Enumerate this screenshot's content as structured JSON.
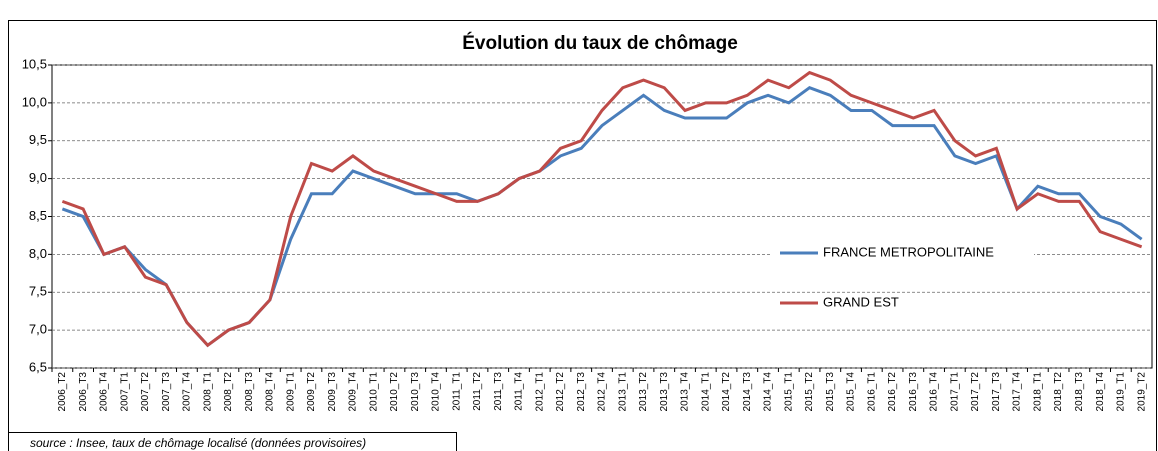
{
  "chart_data": {
    "type": "line",
    "title": "Évolution du taux de chômage",
    "categories": [
      "2006_T2",
      "2006_T3",
      "2006_T4",
      "2007_T1",
      "2007_T2",
      "2007_T3",
      "2007_T4",
      "2008_T1",
      "2008_T2",
      "2008_T3",
      "2008_T4",
      "2009_T1",
      "2009_T2",
      "2009_T3",
      "2009_T4",
      "2010_T1",
      "2010_T2",
      "2010_T3",
      "2010_T4",
      "2011_T1",
      "2011_T2",
      "2011_T3",
      "2011_T4",
      "2012_T1",
      "2012_T2",
      "2012_T3",
      "2012_T4",
      "2013_T1",
      "2013_T2",
      "2013_T3",
      "2013_T4",
      "2014_T1",
      "2014_T2",
      "2014_T3",
      "2014_T4",
      "2015_T1",
      "2015_T2",
      "2015_T3",
      "2015_T4",
      "2016_T1",
      "2016_T2",
      "2016_T3",
      "2016_T4",
      "2017_T1",
      "2017_T2",
      "2017_T3",
      "2017_T4",
      "2018_T1",
      "2018_T2",
      "2018_T3",
      "2018_T4",
      "2019_T1",
      "2019_T2"
    ],
    "series": [
      {
        "name": "FRANCE METROPOLITAINE",
        "color": "#4a7ebb",
        "values": [
          8.6,
          8.5,
          8.0,
          8.1,
          7.8,
          7.6,
          7.1,
          6.8,
          7.0,
          7.1,
          7.4,
          8.2,
          8.8,
          8.8,
          9.1,
          9.0,
          8.9,
          8.8,
          8.8,
          8.8,
          8.7,
          8.8,
          9.0,
          9.1,
          9.3,
          9.4,
          9.7,
          9.9,
          10.1,
          9.9,
          9.8,
          9.8,
          9.8,
          10.0,
          10.1,
          10.0,
          10.2,
          10.1,
          9.9,
          9.9,
          9.7,
          9.7,
          9.7,
          9.3,
          9.2,
          9.3,
          8.6,
          8.9,
          8.8,
          8.8,
          8.5,
          8.4,
          8.2
        ]
      },
      {
        "name": "GRAND EST",
        "color": "#be4b48",
        "values": [
          8.7,
          8.6,
          8.0,
          8.1,
          7.7,
          7.6,
          7.1,
          6.8,
          7.0,
          7.1,
          7.4,
          8.5,
          9.2,
          9.1,
          9.3,
          9.1,
          9.0,
          8.9,
          8.8,
          8.7,
          8.7,
          8.8,
          9.0,
          9.1,
          9.4,
          9.5,
          9.9,
          10.2,
          10.3,
          10.2,
          9.9,
          10.0,
          10.0,
          10.1,
          10.3,
          10.2,
          10.4,
          10.3,
          10.1,
          10.0,
          9.9,
          9.8,
          9.9,
          9.5,
          9.3,
          9.4,
          8.6,
          8.8,
          8.7,
          8.7,
          8.3,
          8.2,
          8.1
        ]
      }
    ],
    "ylim": [
      6.5,
      10.5
    ],
    "yticks": [
      {
        "value": 6.5,
        "label": "6,5"
      },
      {
        "value": 7.0,
        "label": "7,0"
      },
      {
        "value": 7.5,
        "label": "7,5"
      },
      {
        "value": 8.0,
        "label": "8,0"
      },
      {
        "value": 8.5,
        "label": "8,5"
      },
      {
        "value": 9.0,
        "label": "9,0"
      },
      {
        "value": 9.5,
        "label": "9,5"
      },
      {
        "value": 10.0,
        "label": "10,0"
      },
      {
        "value": 10.5,
        "label": "10,5"
      }
    ],
    "grid": true,
    "source": "source : Insee, taux de chômage localisé (données provisoires)"
  }
}
